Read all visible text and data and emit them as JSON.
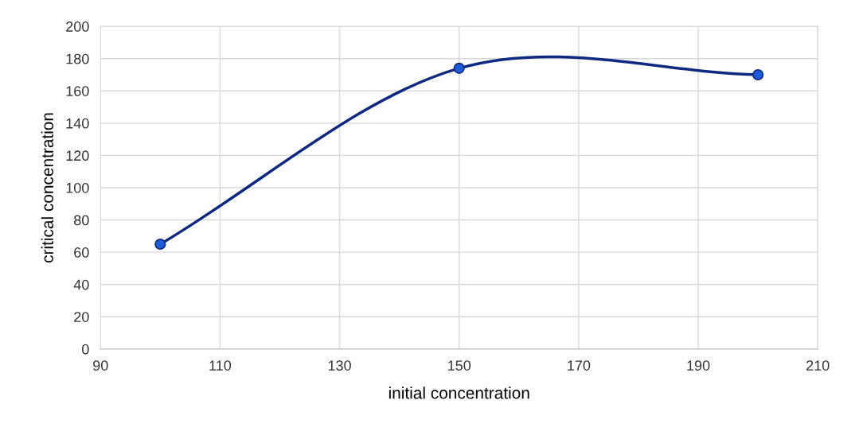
{
  "chart_data": {
    "type": "line",
    "xlabel": "initial concentration",
    "ylabel": "critical concentration",
    "x": [
      100,
      150,
      200
    ],
    "series": [
      {
        "color": "#0d2a80",
        "values": [
          65,
          174,
          170
        ]
      }
    ],
    "xlim": [
      90,
      210
    ],
    "xticks": [
      90,
      110,
      130,
      150,
      170,
      190,
      210
    ],
    "ylim": [
      0,
      200
    ],
    "yticks": [
      0,
      20,
      40,
      60,
      80,
      100,
      120,
      140,
      160,
      180,
      200
    ],
    "grid": true,
    "marker": "circle",
    "line_style": "solid"
  }
}
